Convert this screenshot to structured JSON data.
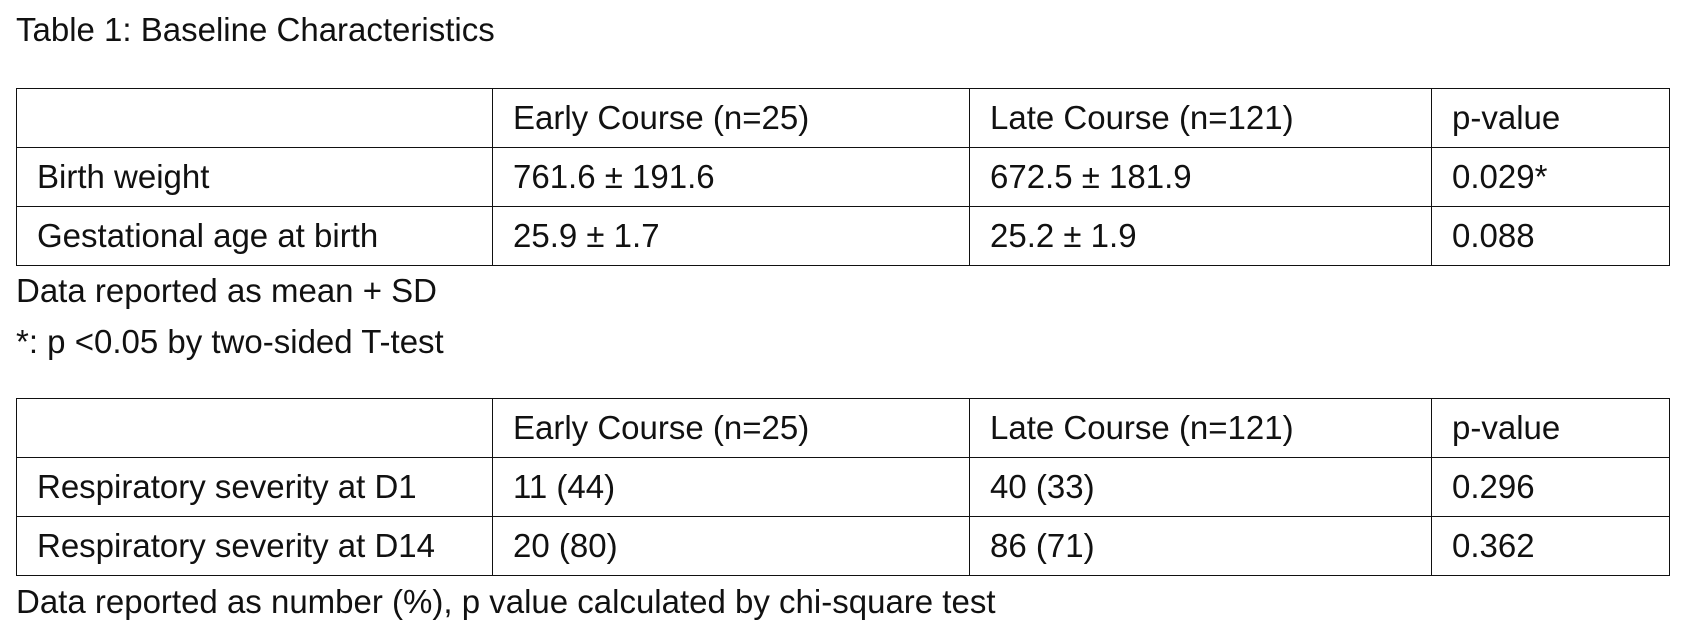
{
  "title": "Table 1: Baseline Characteristics",
  "table1": {
    "header": [
      "",
      "Early Course (n=25)",
      "Late Course (n=121)",
      "p-value"
    ],
    "rows": [
      [
        "Birth weight",
        "761.6 ± 191.6",
        "672.5 ± 181.9",
        "0.029*"
      ],
      [
        "Gestational age at birth",
        "25.9 ± 1.7",
        "25.2 ± 1.9",
        "0.088"
      ]
    ],
    "notes": [
      "Data reported as mean + SD",
      "*: p <0.05 by two-sided T-test"
    ]
  },
  "table2": {
    "header": [
      "",
      "Early Course (n=25)",
      "Late Course (n=121)",
      "p-value"
    ],
    "rows": [
      [
        "Respiratory severity at D1",
        "11 (44)",
        "40 (33)",
        "0.296"
      ],
      [
        "Respiratory severity at D14",
        "20 (80)",
        "86 (71)",
        "0.362"
      ]
    ],
    "notes": [
      "Data reported as number (%), p value calculated by chi-square test"
    ]
  }
}
